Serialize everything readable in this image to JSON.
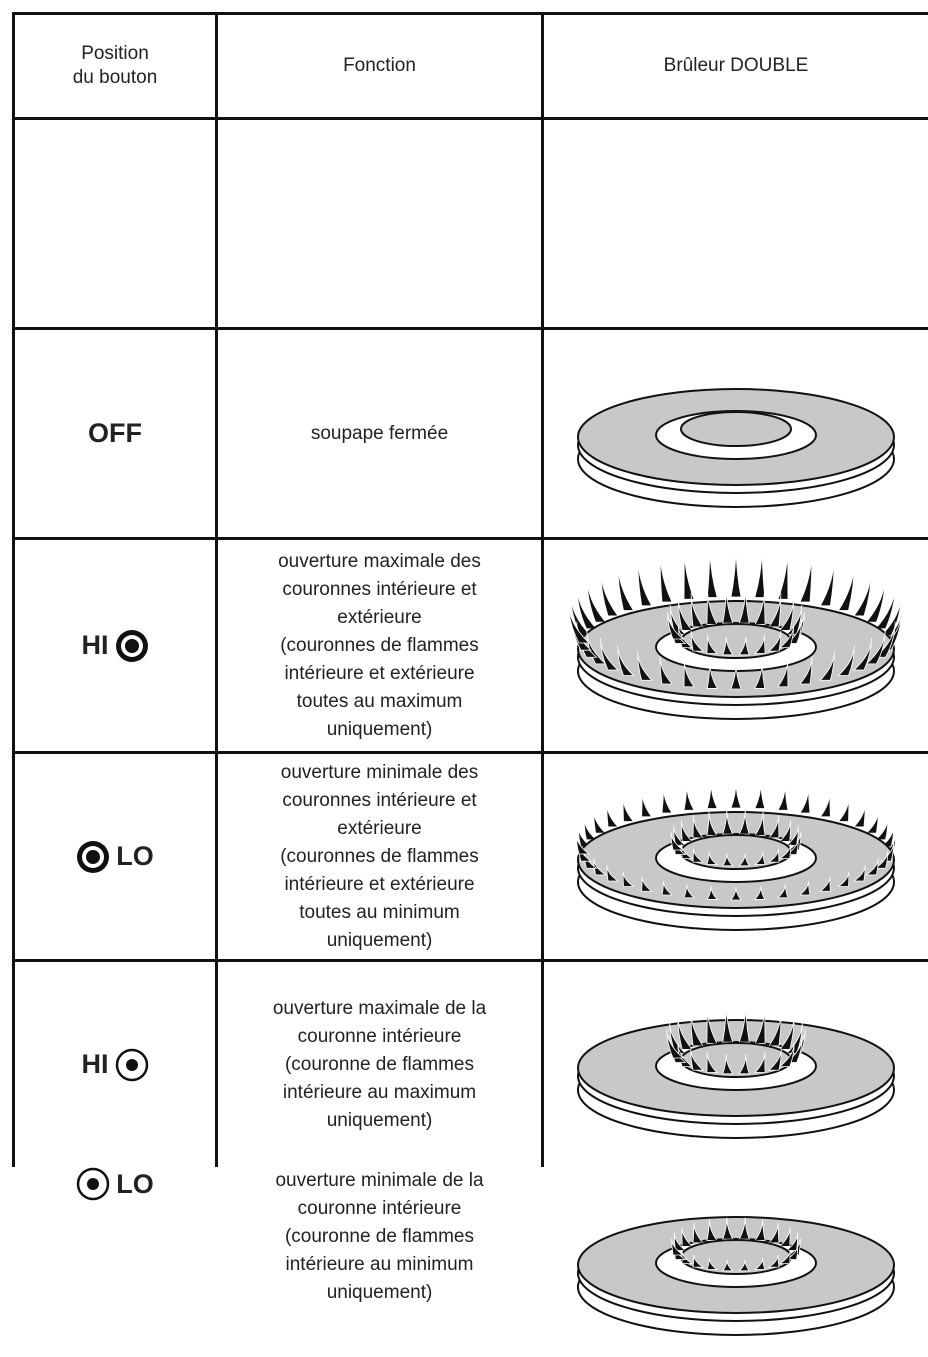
{
  "header": {
    "position": [
      "Position",
      "du bouton"
    ],
    "function": "Fonction",
    "burner": "Brûleur DOUBLE"
  },
  "rows": [
    {
      "position": "OFF",
      "function": [
        "soupape fermée"
      ]
    },
    {
      "position": "HI",
      "function": [
        "ouverture maximale des",
        "couronnes intérieure et",
        "extérieure",
        "(couronnes de flammes",
        "intérieure et extérieure",
        "toutes au maximum",
        "uniquement)"
      ]
    },
    {
      "position": "LO",
      "function": [
        "ouverture minimale des",
        "couronnes intérieure et",
        "extérieure",
        "(couronnes de flammes",
        "intérieure et extérieure",
        "toutes au minimum",
        "uniquement)"
      ]
    },
    {
      "position": "HI",
      "function": [
        "ouverture maximale de la",
        "couronne intérieure",
        "(couronne de flammes",
        "intérieure au maximum",
        "uniquement)"
      ]
    },
    {
      "position": "LO",
      "function": [
        "ouverture minimale de la",
        "couronne intérieure",
        "(couronne de flammes",
        "intérieure au minimum",
        "uniquement)"
      ]
    }
  ]
}
